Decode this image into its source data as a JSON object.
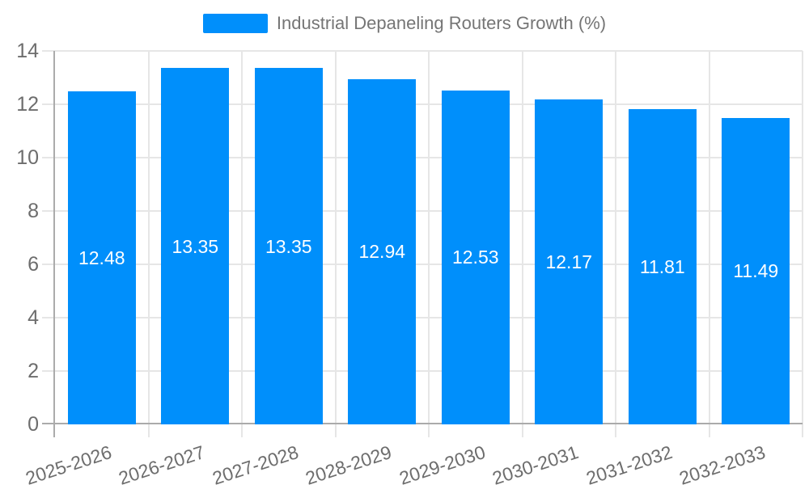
{
  "legend": {
    "items": [
      {
        "label": "Industrial Depaneling Routers Growth (%)",
        "color": "#008FFB"
      }
    ]
  },
  "chart_data": {
    "type": "bar",
    "title": "Industrial Depaneling Routers Growth (%)",
    "categories": [
      "2025-2026",
      "2026-2027",
      "2027-2028",
      "2028-2029",
      "2029-2030",
      "2030-2031",
      "2031-2032",
      "2032-2033"
    ],
    "series": [
      {
        "name": "Industrial Depaneling Routers Growth (%)",
        "values": [
          12.48,
          13.35,
          13.35,
          12.94,
          12.53,
          12.17,
          11.81,
          11.49
        ]
      }
    ],
    "value_labels": [
      "12.48",
      "13.35",
      "13.35",
      "12.94",
      "12.53",
      "12.17",
      "11.81",
      "11.49"
    ],
    "xlabel": "",
    "ylabel": "",
    "ylim": [
      0,
      14
    ],
    "yticks": [
      0,
      2,
      4,
      6,
      8,
      10,
      12,
      14
    ],
    "grid": true,
    "legend_position": "top",
    "colors": {
      "bar": "#008FFB",
      "grid": "#e6e6e6",
      "axis_line": "#ababab",
      "axis_text": "#6d6d6d",
      "legend_text": "#757575",
      "value_text": "#ffffff"
    }
  }
}
